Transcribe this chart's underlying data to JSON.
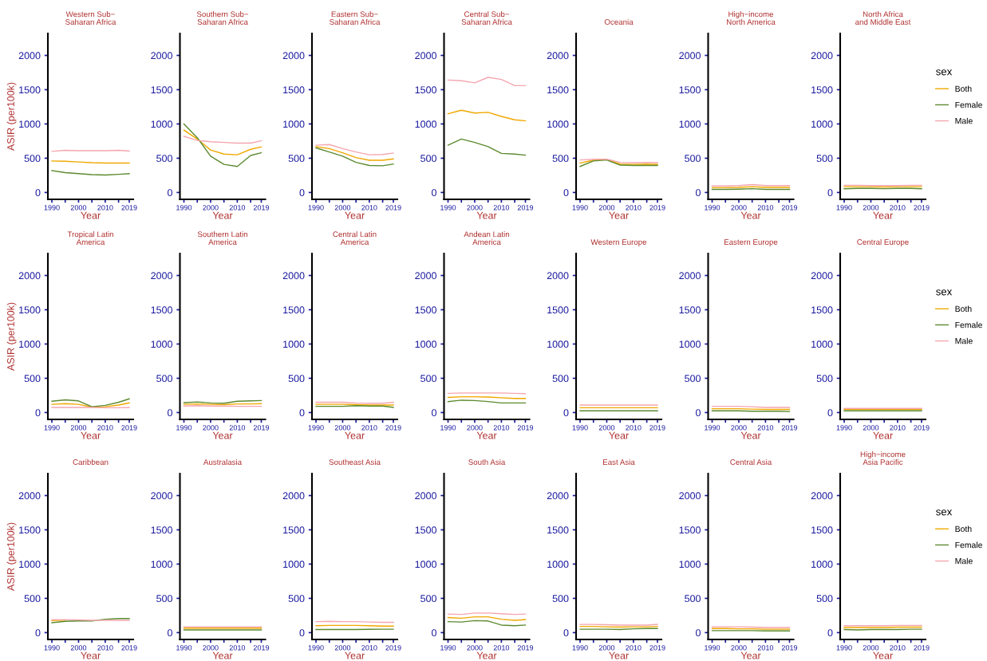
{
  "chart_data": [
    {
      "type": "line",
      "title": "Western Sub−\nSaharan Africa",
      "xlabel": "Year",
      "ylabel": "ASIR (per100k)",
      "x": [
        1990,
        1995,
        2000,
        2005,
        2010,
        2015,
        2019
      ],
      "xlim": [
        1988.5,
        2020.5
      ],
      "xticks": [
        1990,
        {
          "value": 1995,
          "label": null
        },
        2000,
        {
          "value": 2005,
          "label": null
        },
        2010,
        {
          "value": 2015,
          "label": null
        },
        2019
      ],
      "ylim": [
        -100,
        2320
      ],
      "yticks": [
        0,
        500,
        1000,
        1500,
        2000
      ],
      "grid": false,
      "legend": false,
      "series": [
        {
          "color": "#f0a800",
          "values": [
            460,
            455,
            445,
            435,
            430,
            430,
            430
          ]
        },
        {
          "color": "#5b8a2e",
          "values": [
            320,
            290,
            275,
            260,
            255,
            265,
            275
          ]
        },
        {
          "color": "#f4a6b0",
          "values": [
            600,
            615,
            610,
            610,
            610,
            615,
            605
          ]
        }
      ]
    },
    {
      "type": "line",
      "title": "Southern Sub−\nSaharan Africa",
      "xlabel": "Year",
      "x": [
        1990,
        1995,
        2000,
        2005,
        2010,
        2015,
        2019
      ],
      "xlim": [
        1988.5,
        2020.5
      ],
      "xticks": [
        1990,
        {
          "value": 1995,
          "label": null
        },
        2000,
        {
          "value": 2005,
          "label": null
        },
        2010,
        {
          "value": 2015,
          "label": null
        },
        2019
      ],
      "ylim": [
        -100,
        2320
      ],
      "yticks": [
        0,
        500,
        1000,
        1500,
        2000
      ],
      "grid": false,
      "legend": false,
      "series": [
        {
          "color": "#f0a800",
          "values": [
            910,
            780,
            620,
            560,
            550,
            630,
            665
          ]
        },
        {
          "color": "#5b8a2e",
          "values": [
            1000,
            800,
            530,
            410,
            380,
            540,
            580
          ]
        },
        {
          "color": "#f4a6b0",
          "values": [
            820,
            760,
            740,
            730,
            720,
            720,
            755
          ]
        }
      ]
    },
    {
      "type": "line",
      "title": "Eastern Sub−\nSaharan Africa",
      "xlabel": "Year",
      "x": [
        1990,
        1995,
        2000,
        2005,
        2010,
        2015,
        2019
      ],
      "xlim": [
        1988.5,
        2020.5
      ],
      "xticks": [
        1990,
        {
          "value": 1995,
          "label": null
        },
        2000,
        {
          "value": 2005,
          "label": null
        },
        2010,
        {
          "value": 2015,
          "label": null
        },
        2019
      ],
      "ylim": [
        -100,
        2320
      ],
      "yticks": [
        0,
        500,
        1000,
        1500,
        2000
      ],
      "grid": false,
      "legend": false,
      "series": [
        {
          "color": "#f0a800",
          "values": [
            670,
            640,
            580,
            510,
            470,
            470,
            490
          ]
        },
        {
          "color": "#5b8a2e",
          "values": [
            650,
            590,
            530,
            440,
            395,
            390,
            415
          ]
        },
        {
          "color": "#f4a6b0",
          "values": [
            690,
            700,
            640,
            590,
            550,
            555,
            575
          ]
        }
      ]
    },
    {
      "type": "line",
      "title": "Central Sub−\nSaharan Africa",
      "xlabel": "Year",
      "x": [
        1990,
        1995,
        2000,
        2005,
        2010,
        2015,
        2019
      ],
      "xlim": [
        1988.5,
        2020.5
      ],
      "xticks": [
        1990,
        {
          "value": 1995,
          "label": null
        },
        2000,
        {
          "value": 2005,
          "label": null
        },
        2010,
        {
          "value": 2015,
          "label": null
        },
        2019
      ],
      "ylim": [
        -100,
        2320
      ],
      "yticks": [
        0,
        500,
        1000,
        1500,
        2000
      ],
      "grid": false,
      "legend": false,
      "series": [
        {
          "color": "#f0a800",
          "values": [
            1150,
            1200,
            1160,
            1170,
            1110,
            1060,
            1045
          ]
        },
        {
          "color": "#5b8a2e",
          "values": [
            690,
            780,
            730,
            670,
            570,
            560,
            545
          ]
        },
        {
          "color": "#f4a6b0",
          "values": [
            1640,
            1630,
            1600,
            1680,
            1650,
            1560,
            1560
          ]
        }
      ]
    },
    {
      "type": "line",
      "title": "Oceania",
      "xlabel": "Year",
      "x": [
        1990,
        1995,
        2000,
        2005,
        2010,
        2015,
        2019
      ],
      "xlim": [
        1988.5,
        2020.5
      ],
      "xticks": [
        1990,
        {
          "value": 1995,
          "label": null
        },
        2000,
        {
          "value": 2005,
          "label": null
        },
        2010,
        {
          "value": 2015,
          "label": null
        },
        2019
      ],
      "ylim": [
        -100,
        2320
      ],
      "yticks": [
        0,
        500,
        1000,
        1500,
        2000
      ],
      "grid": false,
      "legend": false,
      "series": [
        {
          "color": "#f0a800",
          "values": [
            430,
            470,
            480,
            415,
            410,
            415,
            410
          ]
        },
        {
          "color": "#5b8a2e",
          "values": [
            380,
            460,
            475,
            400,
            395,
            395,
            395
          ]
        },
        {
          "color": "#f4a6b0",
          "values": [
            475,
            485,
            485,
            440,
            435,
            440,
            435
          ]
        }
      ]
    },
    {
      "type": "line",
      "title": "High−income\nNorth America",
      "xlabel": "Year",
      "x": [
        1990,
        1995,
        2000,
        2005,
        2010,
        2015,
        2019
      ],
      "xlim": [
        1988.5,
        2020.5
      ],
      "xticks": [
        1990,
        {
          "value": 1995,
          "label": null
        },
        2000,
        {
          "value": 2005,
          "label": null
        },
        2010,
        {
          "value": 2015,
          "label": null
        },
        2019
      ],
      "ylim": [
        -100,
        2320
      ],
      "yticks": [
        0,
        500,
        1000,
        1500,
        2000
      ],
      "grid": false,
      "legend": false,
      "series": [
        {
          "color": "#f0a800",
          "values": [
            70,
            70,
            75,
            85,
            75,
            75,
            75
          ]
        },
        {
          "color": "#5b8a2e",
          "values": [
            45,
            45,
            48,
            55,
            45,
            45,
            45
          ]
        },
        {
          "color": "#f4a6b0",
          "values": [
            95,
            95,
            100,
            115,
            100,
            100,
            100
          ]
        }
      ]
    },
    {
      "type": "line",
      "title": "North Africa\nand Middle East",
      "xlabel": "Year",
      "x": [
        1990,
        1995,
        2000,
        2005,
        2010,
        2015,
        2019
      ],
      "xlim": [
        1988.5,
        2020.5
      ],
      "xticks": [
        1990,
        {
          "value": 1995,
          "label": null
        },
        2000,
        {
          "value": 2005,
          "label": null
        },
        2010,
        {
          "value": 2015,
          "label": null
        },
        2019
      ],
      "ylim": [
        -100,
        2320
      ],
      "yticks": [
        0,
        500,
        1000,
        1500,
        2000
      ],
      "grid": false,
      "legend": "right",
      "legend_title": "sex",
      "series": [
        {
          "name": "Both",
          "color": "#f0a800",
          "values": [
            85,
            85,
            85,
            80,
            85,
            85,
            85
          ]
        },
        {
          "name": "Female",
          "color": "#5b8a2e",
          "values": [
            55,
            60,
            60,
            55,
            60,
            60,
            55
          ]
        },
        {
          "name": "Male",
          "color": "#f4a6b0",
          "values": [
            105,
            105,
            100,
            100,
            100,
            105,
            105
          ]
        }
      ]
    },
    {
      "type": "line",
      "title": "Tropical Latin\nAmerica",
      "xlabel": "Year",
      "ylabel": "ASIR (per100k)",
      "x": [
        1990,
        1995,
        2000,
        2005,
        2010,
        2015,
        2019
      ],
      "xlim": [
        1988.5,
        2020.5
      ],
      "xticks": [
        1990,
        {
          "value": 1995,
          "label": null
        },
        2000,
        {
          "value": 2005,
          "label": null
        },
        2010,
        {
          "value": 2015,
          "label": null
        },
        2019
      ],
      "ylim": [
        -100,
        2320
      ],
      "yticks": [
        0,
        500,
        1000,
        1500,
        2000
      ],
      "grid": false,
      "legend": false,
      "series": [
        {
          "color": "#f0a800",
          "values": [
            120,
            130,
            120,
            80,
            85,
            110,
            140
          ]
        },
        {
          "color": "#5b8a2e",
          "values": [
            165,
            185,
            170,
            85,
            105,
            150,
            200
          ]
        },
        {
          "color": "#f4a6b0",
          "values": [
            75,
            75,
            75,
            75,
            70,
            70,
            75
          ]
        }
      ]
    },
    {
      "type": "line",
      "title": "Southern Latin\nAmerica",
      "xlabel": "Year",
      "x": [
        1990,
        1995,
        2000,
        2005,
        2010,
        2015,
        2019
      ],
      "xlim": [
        1988.5,
        2020.5
      ],
      "xticks": [
        1990,
        {
          "value": 1995,
          "label": null
        },
        2000,
        {
          "value": 2005,
          "label": null
        },
        2010,
        {
          "value": 2015,
          "label": null
        },
        2019
      ],
      "ylim": [
        -100,
        2320
      ],
      "yticks": [
        0,
        500,
        1000,
        1500,
        2000
      ],
      "grid": false,
      "legend": false,
      "series": [
        {
          "color": "#f0a800",
          "values": [
            120,
            125,
            120,
            115,
            125,
            125,
            130
          ]
        },
        {
          "color": "#5b8a2e",
          "values": [
            145,
            155,
            140,
            135,
            165,
            170,
            175
          ]
        },
        {
          "color": "#f4a6b0",
          "values": [
            95,
            100,
            95,
            95,
            90,
            90,
            90
          ]
        }
      ]
    },
    {
      "type": "line",
      "title": "Central Latin\nAmerica",
      "xlabel": "Year",
      "x": [
        1990,
        1995,
        2000,
        2005,
        2010,
        2015,
        2019
      ],
      "xlim": [
        1988.5,
        2020.5
      ],
      "xticks": [
        1990,
        {
          "value": 1995,
          "label": null
        },
        2000,
        {
          "value": 2005,
          "label": null
        },
        2010,
        {
          "value": 2015,
          "label": null
        },
        2019
      ],
      "ylim": [
        -100,
        2320
      ],
      "yticks": [
        0,
        500,
        1000,
        1500,
        2000
      ],
      "grid": false,
      "legend": false,
      "series": [
        {
          "color": "#f0a800",
          "values": [
            120,
            120,
            120,
            115,
            110,
            110,
            110
          ]
        },
        {
          "color": "#5b8a2e",
          "values": [
            90,
            90,
            90,
            100,
            95,
            95,
            75
          ]
        },
        {
          "color": "#f4a6b0",
          "values": [
            150,
            150,
            150,
            140,
            135,
            135,
            150
          ]
        }
      ]
    },
    {
      "type": "line",
      "title": "Andean Latin\nAmerica",
      "xlabel": "Year",
      "x": [
        1990,
        1995,
        2000,
        2005,
        2010,
        2015,
        2019
      ],
      "xlim": [
        1988.5,
        2020.5
      ],
      "xticks": [
        1990,
        {
          "value": 1995,
          "label": null
        },
        2000,
        {
          "value": 2005,
          "label": null
        },
        2010,
        {
          "value": 2015,
          "label": null
        },
        2019
      ],
      "ylim": [
        -100,
        2320
      ],
      "yticks": [
        0,
        500,
        1000,
        1500,
        2000
      ],
      "grid": false,
      "legend": false,
      "series": [
        {
          "color": "#f0a800",
          "values": [
            220,
            230,
            230,
            225,
            215,
            205,
            205
          ]
        },
        {
          "color": "#5b8a2e",
          "values": [
            160,
            180,
            175,
            160,
            140,
            140,
            140
          ]
        },
        {
          "color": "#f4a6b0",
          "values": [
            280,
            285,
            285,
            285,
            285,
            280,
            275
          ]
        }
      ]
    },
    {
      "type": "line",
      "title": "Western Europe",
      "xlabel": "Year",
      "x": [
        1990,
        1995,
        2000,
        2005,
        2010,
        2015,
        2019
      ],
      "xlim": [
        1988.5,
        2020.5
      ],
      "xticks": [
        1990,
        {
          "value": 1995,
          "label": null
        },
        2000,
        {
          "value": 2005,
          "label": null
        },
        2010,
        {
          "value": 2015,
          "label": null
        },
        2019
      ],
      "ylim": [
        -100,
        2320
      ],
      "yticks": [
        0,
        500,
        1000,
        1500,
        2000
      ],
      "grid": false,
      "legend": false,
      "series": [
        {
          "color": "#f0a800",
          "values": [
            70,
            70,
            70,
            70,
            70,
            70,
            70
          ]
        },
        {
          "color": "#5b8a2e",
          "values": [
            25,
            25,
            25,
            25,
            25,
            25,
            25
          ]
        },
        {
          "color": "#f4a6b0",
          "values": [
            110,
            110,
            110,
            110,
            110,
            110,
            110
          ]
        }
      ]
    },
    {
      "type": "line",
      "title": "Eastern Europe",
      "xlabel": "Year",
      "x": [
        1990,
        1995,
        2000,
        2005,
        2010,
        2015,
        2019
      ],
      "xlim": [
        1988.5,
        2020.5
      ],
      "xticks": [
        1990,
        {
          "value": 1995,
          "label": null
        },
        2000,
        {
          "value": 2005,
          "label": null
        },
        2010,
        {
          "value": 2015,
          "label": null
        },
        2019
      ],
      "ylim": [
        -100,
        2320
      ],
      "yticks": [
        0,
        500,
        1000,
        1500,
        2000
      ],
      "grid": false,
      "legend": false,
      "series": [
        {
          "color": "#f0a800",
          "values": [
            55,
            55,
            55,
            50,
            45,
            45,
            45
          ]
        },
        {
          "color": "#5b8a2e",
          "values": [
            25,
            25,
            25,
            20,
            20,
            20,
            15
          ]
        },
        {
          "color": "#f4a6b0",
          "values": [
            90,
            90,
            90,
            85,
            75,
            75,
            75
          ]
        }
      ]
    },
    {
      "type": "line",
      "title": "Central Europe",
      "xlabel": "Year",
      "x": [
        1990,
        1995,
        2000,
        2005,
        2010,
        2015,
        2019
      ],
      "xlim": [
        1988.5,
        2020.5
      ],
      "xticks": [
        1990,
        {
          "value": 1995,
          "label": null
        },
        2000,
        {
          "value": 2005,
          "label": null
        },
        2010,
        {
          "value": 2015,
          "label": null
        },
        2019
      ],
      "ylim": [
        -100,
        2320
      ],
      "yticks": [
        0,
        500,
        1000,
        1500,
        2000
      ],
      "grid": false,
      "legend": "right",
      "legend_title": "sex",
      "series": [
        {
          "name": "Both",
          "color": "#f0a800",
          "values": [
            45,
            45,
            45,
            45,
            45,
            45,
            45
          ]
        },
        {
          "name": "Female",
          "color": "#5b8a2e",
          "values": [
            25,
            25,
            25,
            25,
            25,
            25,
            25
          ]
        },
        {
          "name": "Male",
          "color": "#f4a6b0",
          "values": [
            60,
            60,
            60,
            60,
            60,
            60,
            60
          ]
        }
      ]
    },
    {
      "type": "line",
      "title": "Caribbean",
      "xlabel": "Year",
      "ylabel": "ASIR (per100k)",
      "x": [
        1990,
        1995,
        2000,
        2005,
        2010,
        2015,
        2019
      ],
      "xlim": [
        1988.5,
        2020.5
      ],
      "xticks": [
        1990,
        {
          "value": 1995,
          "label": null
        },
        2000,
        {
          "value": 2005,
          "label": null
        },
        2010,
        {
          "value": 2015,
          "label": null
        },
        2019
      ],
      "ylim": [
        -100,
        2320
      ],
      "yticks": [
        0,
        500,
        1000,
        1500,
        2000
      ],
      "grid": false,
      "legend": false,
      "series": [
        {
          "color": "#f0a800",
          "values": [
            175,
            180,
            null,
            null,
            null,
            null,
            null
          ]
        },
        {
          "color": "#5b8a2e",
          "values": [
            145,
            165,
            170,
            170,
            195,
            205,
            205
          ]
        },
        {
          "color": "#f4a6b0",
          "values": [
            190,
            190,
            185,
            180,
            180,
            180,
            180
          ]
        }
      ]
    },
    {
      "type": "line",
      "title": "Australasia",
      "xlabel": "Year",
      "x": [
        1990,
        1995,
        2000,
        2005,
        2010,
        2015,
        2019
      ],
      "xlim": [
        1988.5,
        2020.5
      ],
      "xticks": [
        1990,
        {
          "value": 1995,
          "label": null
        },
        2000,
        {
          "value": 2005,
          "label": null
        },
        2010,
        {
          "value": 2015,
          "label": null
        },
        2019
      ],
      "ylim": [
        -100,
        2320
      ],
      "yticks": [
        0,
        500,
        1000,
        1500,
        2000
      ],
      "grid": false,
      "legend": false,
      "series": [
        {
          "color": "#f0a800",
          "values": [
            65,
            65,
            65,
            65,
            65,
            65,
            65
          ]
        },
        {
          "color": "#5b8a2e",
          "values": [
            40,
            40,
            40,
            40,
            40,
            40,
            40
          ]
        },
        {
          "color": "#f4a6b0",
          "values": [
            85,
            85,
            85,
            85,
            85,
            85,
            85
          ]
        }
      ]
    },
    {
      "type": "line",
      "title": "Southeast Asia",
      "xlabel": "Year",
      "x": [
        1990,
        1995,
        2000,
        2005,
        2010,
        2015,
        2019
      ],
      "xlim": [
        1988.5,
        2020.5
      ],
      "xticks": [
        1990,
        {
          "value": 1995,
          "label": null
        },
        2000,
        {
          "value": 2005,
          "label": null
        },
        2010,
        {
          "value": 2015,
          "label": null
        },
        2019
      ],
      "ylim": [
        -100,
        2320
      ],
      "yticks": [
        0,
        500,
        1000,
        1500,
        2000
      ],
      "grid": false,
      "legend": false,
      "series": [
        {
          "color": "#f0a800",
          "values": [
            100,
            105,
            105,
            105,
            100,
            95,
            95
          ]
        },
        {
          "color": "#5b8a2e",
          "values": [
            45,
            45,
            45,
            45,
            48,
            50,
            50
          ]
        },
        {
          "color": "#f4a6b0",
          "values": [
            160,
            165,
            160,
            160,
            155,
            150,
            150
          ]
        }
      ]
    },
    {
      "type": "line",
      "title": "South Asia",
      "xlabel": "Year",
      "x": [
        1990,
        1995,
        2000,
        2005,
        2010,
        2015,
        2019
      ],
      "xlim": [
        1988.5,
        2020.5
      ],
      "xticks": [
        1990,
        {
          "value": 1995,
          "label": null
        },
        2000,
        {
          "value": 2005,
          "label": null
        },
        2010,
        {
          "value": 2015,
          "label": null
        },
        2019
      ],
      "ylim": [
        -100,
        2320
      ],
      "yticks": [
        0,
        500,
        1000,
        1500,
        2000
      ],
      "grid": false,
      "legend": false,
      "series": [
        {
          "color": "#f0a800",
          "values": [
            220,
            210,
            230,
            230,
            195,
            180,
            190
          ]
        },
        {
          "color": "#5b8a2e",
          "values": [
            160,
            155,
            175,
            170,
            110,
            100,
            110
          ]
        },
        {
          "color": "#f4a6b0",
          "values": [
            270,
            265,
            285,
            285,
            275,
            265,
            270
          ]
        }
      ]
    },
    {
      "type": "line",
      "title": "East Asia",
      "xlabel": "Year",
      "x": [
        1990,
        1995,
        2000,
        2005,
        2010,
        2015,
        2019
      ],
      "xlim": [
        1988.5,
        2020.5
      ],
      "xticks": [
        1990,
        {
          "value": 1995,
          "label": null
        },
        2000,
        {
          "value": 2005,
          "label": null
        },
        2010,
        {
          "value": 2015,
          "label": null
        },
        2019
      ],
      "ylim": [
        -100,
        2320
      ],
      "yticks": [
        0,
        500,
        1000,
        1500,
        2000
      ],
      "grid": false,
      "legend": false,
      "series": [
        {
          "color": "#f0a800",
          "values": [
            90,
            90,
            85,
            80,
            85,
            85,
            90
          ]
        },
        {
          "color": "#5b8a2e",
          "values": [
            50,
            50,
            50,
            45,
            55,
            60,
            60
          ]
        },
        {
          "color": "#f4a6b0",
          "values": [
            120,
            120,
            115,
            110,
            110,
            110,
            120
          ]
        }
      ]
    },
    {
      "type": "line",
      "title": "Central Asia",
      "xlabel": "Year",
      "x": [
        1990,
        1995,
        2000,
        2005,
        2010,
        2015,
        2019
      ],
      "xlim": [
        1988.5,
        2020.5
      ],
      "xticks": [
        1990,
        {
          "value": 1995,
          "label": null
        },
        2000,
        {
          "value": 2005,
          "label": null
        },
        2010,
        {
          "value": 2015,
          "label": null
        },
        2019
      ],
      "ylim": [
        -100,
        2320
      ],
      "yticks": [
        0,
        500,
        1000,
        1500,
        2000
      ],
      "grid": false,
      "legend": false,
      "series": [
        {
          "color": "#f0a800",
          "values": [
            60,
            60,
            55,
            55,
            50,
            50,
            50
          ]
        },
        {
          "color": "#5b8a2e",
          "values": [
            30,
            30,
            30,
            30,
            25,
            25,
            25
          ]
        },
        {
          "color": "#f4a6b0",
          "values": [
            85,
            85,
            85,
            80,
            75,
            75,
            75
          ]
        }
      ]
    },
    {
      "type": "line",
      "title": "High−income\nAsia Pacific",
      "xlabel": "Year",
      "x": [
        1990,
        1995,
        2000,
        2005,
        2010,
        2015,
        2019
      ],
      "xlim": [
        1988.5,
        2020.5
      ],
      "xticks": [
        1990,
        {
          "value": 1995,
          "label": null
        },
        2000,
        {
          "value": 2005,
          "label": null
        },
        2010,
        {
          "value": 2015,
          "label": null
        },
        2019
      ],
      "ylim": [
        -100,
        2320
      ],
      "yticks": [
        0,
        500,
        1000,
        1500,
        2000
      ],
      "grid": false,
      "legend": "right",
      "legend_title": "sex",
      "series": [
        {
          "name": "Both",
          "color": "#f0a800",
          "values": [
            75,
            75,
            75,
            75,
            80,
            80,
            80
          ]
        },
        {
          "name": "Female",
          "color": "#5b8a2e",
          "values": [
            45,
            40,
            45,
            45,
            45,
            50,
            50
          ]
        },
        {
          "name": "Male",
          "color": "#f4a6b0",
          "values": [
            100,
            100,
            100,
            100,
            105,
            105,
            105
          ]
        }
      ]
    }
  ]
}
